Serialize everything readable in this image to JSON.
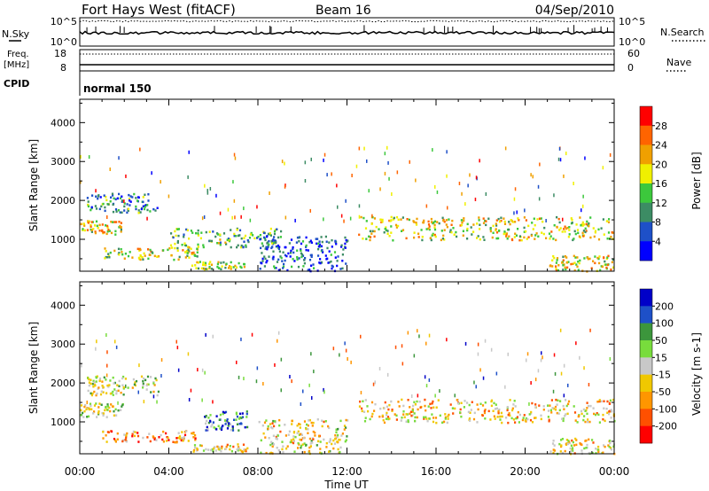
{
  "header": {
    "station": "Fort Hays West (fitACF)",
    "beam": "Beam 16",
    "date": "04/Sep/2010"
  },
  "status_panels": {
    "nsky": {
      "label": "N.Sky",
      "right_label": "N.Search",
      "left_ticks": [
        "10^5",
        "10^0"
      ],
      "right_ticks": [
        "10^5",
        "10^0"
      ]
    },
    "freq": {
      "label_line1": "Freq.",
      "label_line2": "[MHz]",
      "left_ticks": [
        "18",
        "8"
      ],
      "right_label": "Nave",
      "right_ticks": [
        "60",
        "0"
      ]
    },
    "cpid": {
      "label": "CPID",
      "value": "normal 150"
    }
  },
  "chart_data": [
    {
      "type": "heatmap",
      "name": "power-panel",
      "ylabel": "Slant Range [km]",
      "yticks": [
        "1000",
        "2000",
        "3000",
        "4000"
      ],
      "ylim": [
        180,
        4600
      ],
      "xlim": [
        0,
        24
      ],
      "xticks": [
        0,
        4,
        8,
        12,
        16,
        20,
        24
      ],
      "colorbar": {
        "label": "Power [dB]",
        "ticks": [
          "4",
          "8",
          "12",
          "16",
          "20",
          "24",
          "28"
        ],
        "colors": [
          "#0000ff",
          "#1e50c8",
          "#3c8c64",
          "#3cc83c",
          "#f0f000",
          "#f0a000",
          "#ff6400",
          "#ff0000"
        ]
      },
      "regions": [
        {
          "t": [
            0.0,
            1.9
          ],
          "r": [
            1150,
            1500
          ],
          "level": 0.6
        },
        {
          "t": [
            0.3,
            3.5
          ],
          "r": [
            1700,
            2200
          ],
          "level": 0.3
        },
        {
          "t": [
            1.0,
            5.3
          ],
          "r": [
            500,
            800
          ],
          "level": 0.55
        },
        {
          "t": [
            4.0,
            9.0
          ],
          "r": [
            800,
            1300
          ],
          "level": 0.4
        },
        {
          "t": [
            5.0,
            7.5
          ],
          "r": [
            250,
            450
          ],
          "level": 0.5
        },
        {
          "t": [
            8.0,
            12.0
          ],
          "r": [
            200,
            1100
          ],
          "level": 0.2
        },
        {
          "t": [
            12.5,
            24.0
          ],
          "r": [
            1000,
            1600
          ],
          "level": 0.55
        },
        {
          "t": [
            21.0,
            24.0
          ],
          "r": [
            200,
            600
          ],
          "level": 0.6
        }
      ]
    },
    {
      "type": "heatmap",
      "name": "velocity-panel",
      "ylabel": "Slant Range [km]",
      "yticks": [
        "1000",
        "2000",
        "3000",
        "4000"
      ],
      "ylim": [
        180,
        4600
      ],
      "xlim": [
        0,
        24
      ],
      "xticks": [
        0,
        4,
        8,
        12,
        16,
        20,
        24
      ],
      "colorbar": {
        "label": "Velocity [m s-1]",
        "ticks": [
          "200",
          "100",
          "50",
          "15",
          "-15",
          "-50",
          "-100",
          "-200"
        ],
        "colors": [
          "#0000c8",
          "#1e50c8",
          "#3c963c",
          "#78dc3c",
          "#c8c8c8",
          "#f0c800",
          "#ff9600",
          "#ff5000",
          "#ff0000"
        ]
      },
      "regions": [
        {
          "t": [
            0.0,
            1.9
          ],
          "r": [
            1150,
            1500
          ],
          "level": 0.5
        },
        {
          "t": [
            0.3,
            3.5
          ],
          "r": [
            1700,
            2200
          ],
          "level": 0.5
        },
        {
          "t": [
            1.0,
            5.3
          ],
          "r": [
            500,
            800
          ],
          "level": 0.7
        },
        {
          "t": [
            5.5,
            7.5
          ],
          "r": [
            800,
            1300
          ],
          "level": 0.25
        },
        {
          "t": [
            5.0,
            7.5
          ],
          "r": [
            250,
            450
          ],
          "level": 0.6
        },
        {
          "t": [
            8.0,
            12.0
          ],
          "r": [
            200,
            1100
          ],
          "level": 0.55
        },
        {
          "t": [
            12.5,
            24.0
          ],
          "r": [
            1000,
            1600
          ],
          "level": 0.6
        },
        {
          "t": [
            21.0,
            24.0
          ],
          "r": [
            200,
            600
          ],
          "level": 0.55
        }
      ]
    }
  ],
  "xaxis": {
    "ticks": [
      "00:00",
      "04:00",
      "08:00",
      "12:00",
      "16:00",
      "20:00",
      "00:00"
    ],
    "label": "Time UT"
  }
}
